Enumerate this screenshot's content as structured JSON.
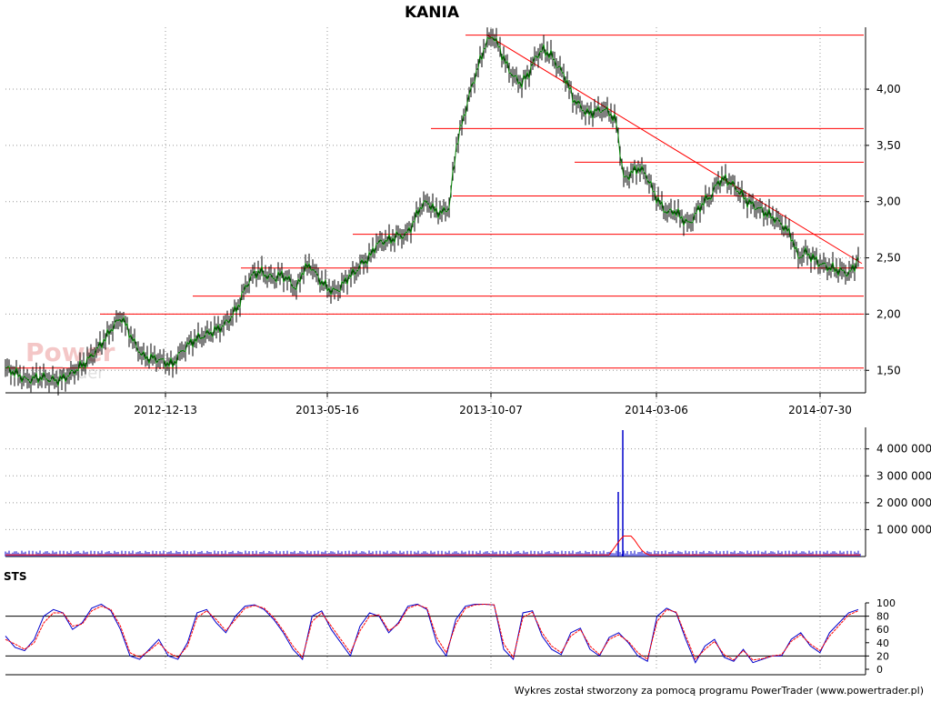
{
  "chart_data": [
    {
      "type": "line",
      "role": "price",
      "title": "KANIA",
      "watermark": "PowerTrader",
      "x_tick_labels": [
        "2012-12-13",
        "2013-05-16",
        "2013-10-07",
        "2014-03-06",
        "2014-07-30"
      ],
      "y_ticks": [
        "1,50",
        "2,00",
        "2,50",
        "3,00",
        "3,50",
        "4,00"
      ],
      "ylim": [
        1.3,
        4.55
      ],
      "grid": true,
      "series": [
        {
          "color": "#006400",
          "x": [
            0,
            8,
            16,
            24,
            32,
            40,
            48,
            56,
            64,
            72,
            80,
            88,
            96,
            104,
            112,
            120,
            128,
            136,
            144,
            152,
            160,
            168,
            176,
            184,
            192,
            200,
            208,
            216,
            224,
            232,
            240,
            248,
            256,
            264,
            272,
            280,
            288,
            296,
            304,
            312,
            320,
            328,
            336,
            344,
            352,
            360,
            368,
            376,
            384,
            392,
            400,
            408,
            416,
            424,
            432,
            440,
            448,
            456,
            464,
            472,
            480,
            488,
            496,
            504,
            512,
            520,
            528,
            536,
            544,
            552,
            560,
            568,
            576,
            584,
            592,
            600,
            608,
            616,
            624,
            632,
            640,
            648,
            656,
            664,
            672,
            680,
            688,
            696,
            704,
            712,
            720,
            728,
            736,
            744,
            752,
            760,
            768,
            776,
            784,
            792,
            800,
            808,
            816,
            824,
            832,
            840,
            848,
            856,
            864,
            872,
            880,
            888,
            896,
            904,
            912,
            920,
            928,
            936,
            940
          ],
          "close": [
            1.52,
            1.49,
            1.45,
            1.41,
            1.43,
            1.44,
            1.42,
            1.41,
            1.43,
            1.47,
            1.52,
            1.57,
            1.64,
            1.72,
            1.81,
            1.91,
            1.97,
            1.84,
            1.71,
            1.62,
            1.61,
            1.6,
            1.57,
            1.55,
            1.65,
            1.72,
            1.77,
            1.8,
            1.83,
            1.86,
            1.9,
            1.97,
            2.07,
            2.24,
            2.35,
            2.38,
            2.34,
            2.32,
            2.35,
            2.3,
            2.22,
            2.4,
            2.43,
            2.32,
            2.25,
            2.2,
            2.23,
            2.32,
            2.37,
            2.45,
            2.5,
            2.62,
            2.65,
            2.66,
            2.7,
            2.7,
            2.8,
            2.95,
            3.0,
            2.92,
            2.9,
            2.95,
            3.5,
            3.75,
            4.0,
            4.2,
            4.4,
            4.48,
            4.35,
            4.2,
            4.1,
            4.05,
            4.15,
            4.3,
            4.35,
            4.3,
            4.2,
            4.1,
            3.92,
            3.85,
            3.78,
            3.8,
            3.82,
            3.8,
            3.7,
            3.2,
            3.25,
            3.3,
            3.25,
            3.1,
            2.98,
            2.9,
            2.92,
            2.85,
            2.8,
            2.9,
            3.0,
            3.05,
            3.18,
            3.2,
            3.15,
            3.08,
            3.0,
            2.96,
            2.92,
            2.88,
            2.84,
            2.78,
            2.7,
            2.5,
            2.55,
            2.5,
            2.45,
            2.42,
            2.4,
            2.38,
            2.36,
            2.45,
            2.62
          ]
        }
      ],
      "horizontal_lines": [
        4.48,
        3.65,
        3.35,
        3.05,
        2.71,
        2.41,
        2.16,
        2.0,
        1.52
      ]
    },
    {
      "type": "bar",
      "role": "volume",
      "y_ticks": [
        "1 000 000",
        "2 000 000",
        "3 000 000",
        "4 000 000"
      ],
      "ylim": [
        0,
        4800000
      ],
      "spikes": [
        {
          "x": 680,
          "value": 2400000
        },
        {
          "x": 685,
          "value": 4700000
        }
      ],
      "average_bump": [
        {
          "x": 670,
          "value": 0
        },
        {
          "x": 685,
          "value": 700000
        },
        {
          "x": 695,
          "value": 700000
        },
        {
          "x": 705,
          "value": 200000
        },
        {
          "x": 712,
          "value": 0
        }
      ]
    },
    {
      "type": "line",
      "role": "oscillator",
      "title": "STS",
      "y_ticks": [
        "0",
        "20",
        "40",
        "60",
        "80",
        "100"
      ],
      "ylim": [
        0,
        100
      ],
      "reference_lines": [
        20,
        80
      ],
      "series": [
        {
          "color": "#0000cc",
          "values": [
            50,
            33,
            28,
            45,
            80,
            90,
            85,
            60,
            70,
            92,
            98,
            88,
            60,
            20,
            15,
            30,
            45,
            20,
            15,
            40,
            85,
            90,
            70,
            55,
            80,
            95,
            97,
            90,
            75,
            55,
            30,
            15,
            80,
            88,
            60,
            40,
            20,
            65,
            85,
            80,
            55,
            70,
            95,
            98,
            90,
            40,
            20,
            75,
            95,
            98,
            98,
            97,
            30,
            15,
            85,
            88,
            50,
            30,
            22,
            55,
            62,
            30,
            20,
            48,
            55,
            40,
            20,
            12,
            80,
            92,
            85,
            45,
            10,
            35,
            45,
            18,
            12,
            30,
            10,
            15,
            20,
            20,
            45,
            55,
            35,
            25,
            55,
            70,
            85,
            90
          ]
        },
        {
          "color": "#ff0000",
          "values": [
            45,
            38,
            30,
            40,
            70,
            85,
            85,
            65,
            68,
            88,
            95,
            90,
            65,
            25,
            18,
            28,
            40,
            25,
            18,
            35,
            78,
            88,
            75,
            58,
            75,
            92,
            96,
            92,
            78,
            58,
            35,
            18,
            72,
            85,
            65,
            45,
            25,
            58,
            80,
            82,
            58,
            68,
            92,
            97,
            92,
            48,
            25,
            68,
            92,
            97,
            98,
            97,
            38,
            18,
            78,
            86,
            55,
            35,
            25,
            50,
            60,
            35,
            22,
            45,
            52,
            42,
            25,
            15,
            72,
            90,
            86,
            50,
            15,
            30,
            42,
            22,
            14,
            28,
            14,
            16,
            20,
            22,
            42,
            52,
            38,
            28,
            50,
            66,
            82,
            88
          ]
        }
      ]
    }
  ],
  "footer": "Wykres został stworzony za pomocą programu PowerTrader (www.powertrader.pl)"
}
